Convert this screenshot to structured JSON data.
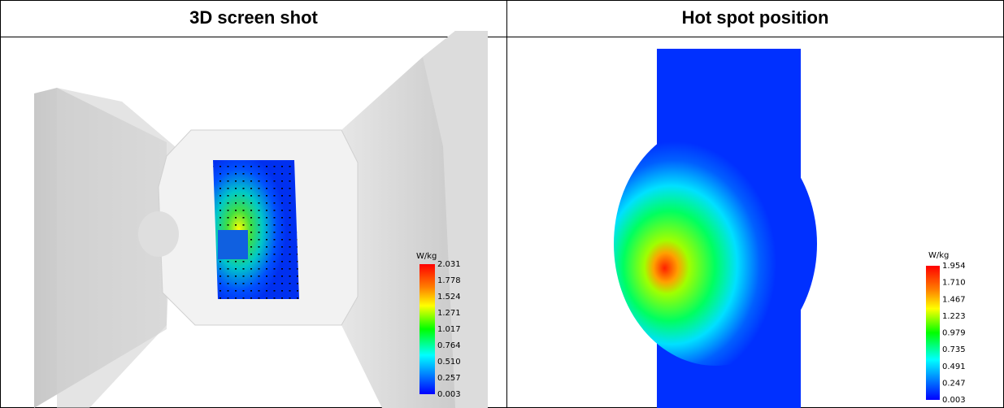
{
  "table": {
    "headers": [
      "3D screen shot",
      "Hot spot position"
    ],
    "cells": [
      {
        "legend": {
          "unit": "W/kg",
          "ticks": [
            "2.031",
            "1.778",
            "1.524",
            "1.271",
            "1.017",
            "0.764",
            "0.510",
            "0.257",
            "0.003"
          ]
        }
      },
      {
        "legend": {
          "unit": "W/kg",
          "ticks": [
            "1.954",
            "1.710",
            "1.467",
            "1.223",
            "0.979",
            "0.735",
            "0.491",
            "0.247",
            "0.003"
          ]
        }
      }
    ]
  }
}
